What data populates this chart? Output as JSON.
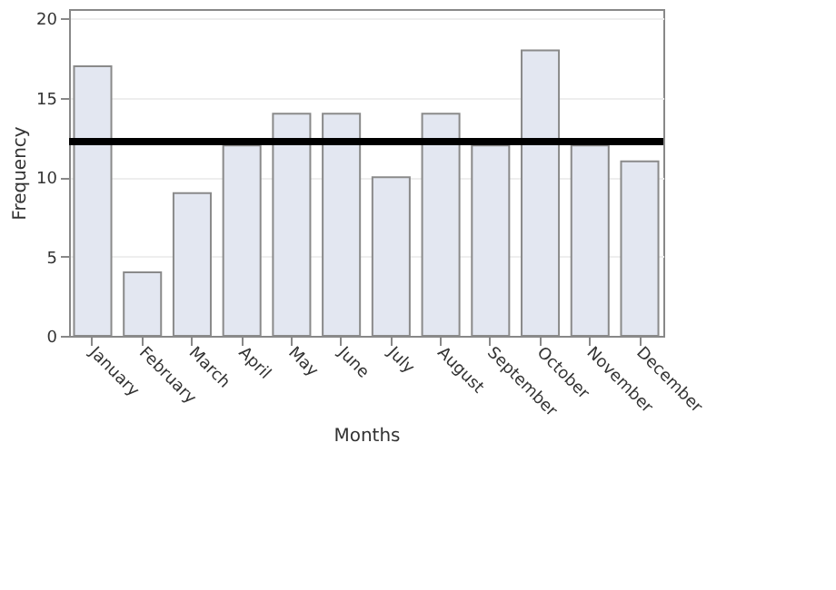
{
  "chart_data": {
    "type": "bar",
    "xlabel": "Months",
    "ylabel": "Frequency",
    "categories": [
      "January",
      "February",
      "March",
      "April",
      "May",
      "June",
      "July",
      "August",
      "September",
      "October",
      "November",
      "December"
    ],
    "values": [
      17,
      4,
      9,
      12,
      14,
      14,
      10,
      14,
      12,
      18,
      12,
      11
    ],
    "color": "#e3e7f1",
    "ylim": [
      0,
      20.6
    ],
    "yticks": [
      0,
      5,
      10,
      15,
      20
    ],
    "grid": "y",
    "ref_lines": [
      {
        "axis": "y",
        "value": 12.25,
        "color": "#000000"
      }
    ]
  }
}
